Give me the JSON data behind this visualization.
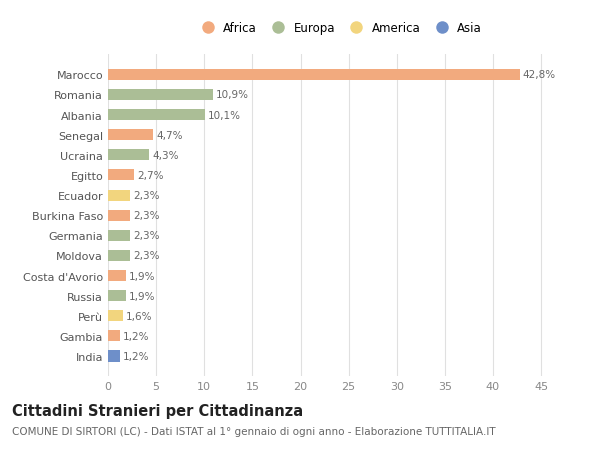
{
  "countries": [
    "India",
    "Gambia",
    "Perù",
    "Russia",
    "Costa d'Avorio",
    "Moldova",
    "Germania",
    "Burkina Faso",
    "Ecuador",
    "Egitto",
    "Ucraina",
    "Senegal",
    "Albania",
    "Romania",
    "Marocco"
  ],
  "values": [
    1.2,
    1.2,
    1.6,
    1.9,
    1.9,
    2.3,
    2.3,
    2.3,
    2.3,
    2.7,
    4.3,
    4.7,
    10.1,
    10.9,
    42.8
  ],
  "labels": [
    "1,2%",
    "1,2%",
    "1,6%",
    "1,9%",
    "1,9%",
    "2,3%",
    "2,3%",
    "2,3%",
    "2,3%",
    "2,7%",
    "4,3%",
    "4,7%",
    "10,1%",
    "10,9%",
    "42,8%"
  ],
  "continents": [
    "Asia",
    "Africa",
    "America",
    "Europa",
    "Africa",
    "Europa",
    "Europa",
    "Africa",
    "America",
    "Africa",
    "Europa",
    "Africa",
    "Europa",
    "Europa",
    "Africa"
  ],
  "continent_colors": {
    "Africa": "#F2AA7E",
    "Europa": "#ABBE96",
    "America": "#F2D57E",
    "Asia": "#6E8FC9"
  },
  "legend_order": [
    "Africa",
    "Europa",
    "America",
    "Asia"
  ],
  "title": "Cittadini Stranieri per Cittadinanza",
  "subtitle": "COMUNE DI SIRTORI (LC) - Dati ISTAT al 1° gennaio di ogni anno - Elaborazione TUTTITALIA.IT",
  "xlim": [
    0,
    48
  ],
  "xticks": [
    0,
    5,
    10,
    15,
    20,
    25,
    30,
    35,
    40,
    45
  ],
  "background_color": "#ffffff",
  "grid_color": "#e0e0e0",
  "bar_height": 0.55,
  "title_fontsize": 10.5,
  "subtitle_fontsize": 7.5,
  "tick_fontsize": 8,
  "label_fontsize": 7.5,
  "legend_fontsize": 8.5
}
